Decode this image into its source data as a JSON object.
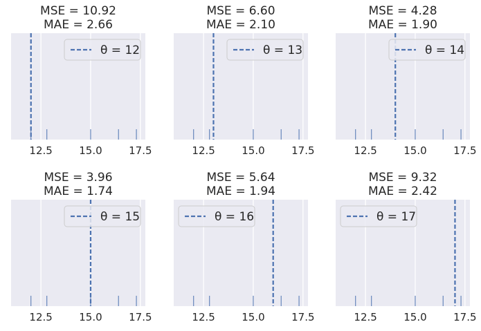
{
  "chart_data": [
    {
      "type": "rug",
      "title_lines": [
        "MSE = 10.92",
        "MAE = 2.66"
      ],
      "theta": 12,
      "legend_label": "θ = 12",
      "legend_position": "upper right"
    },
    {
      "type": "rug",
      "title_lines": [
        "MSE = 6.60",
        "MAE = 2.10"
      ],
      "theta": 13,
      "legend_label": "θ = 13",
      "legend_position": "upper right"
    },
    {
      "type": "rug",
      "title_lines": [
        "MSE = 4.28",
        "MAE = 1.90"
      ],
      "theta": 14,
      "legend_label": "θ = 14",
      "legend_position": "upper right"
    },
    {
      "type": "rug",
      "title_lines": [
        "MSE = 3.96",
        "MAE = 1.74"
      ],
      "theta": 15,
      "legend_label": "θ = 15",
      "legend_position": "upper right"
    },
    {
      "type": "rug",
      "title_lines": [
        "MSE = 5.64",
        "MAE = 1.94"
      ],
      "theta": 16,
      "legend_label": "θ = 16",
      "legend_position": "upper left"
    },
    {
      "type": "rug",
      "title_lines": [
        "MSE = 9.32",
        "MAE = 2.42"
      ],
      "theta": 17,
      "legend_label": "θ = 17",
      "legend_position": "upper left"
    }
  ],
  "rug_values": [
    12.0,
    12.8,
    15.0,
    16.4,
    17.3
  ],
  "xlim": [
    11.0,
    17.75
  ],
  "xticks": [
    12.5,
    15.0,
    17.5
  ],
  "xtick_labels": [
    "12.5",
    "15.0",
    "17.5"
  ],
  "grid": true,
  "colors": {
    "line": "#4c72b0",
    "axes_bg": "#eaeaf2",
    "grid": "#ffffff",
    "text": "#262626"
  }
}
